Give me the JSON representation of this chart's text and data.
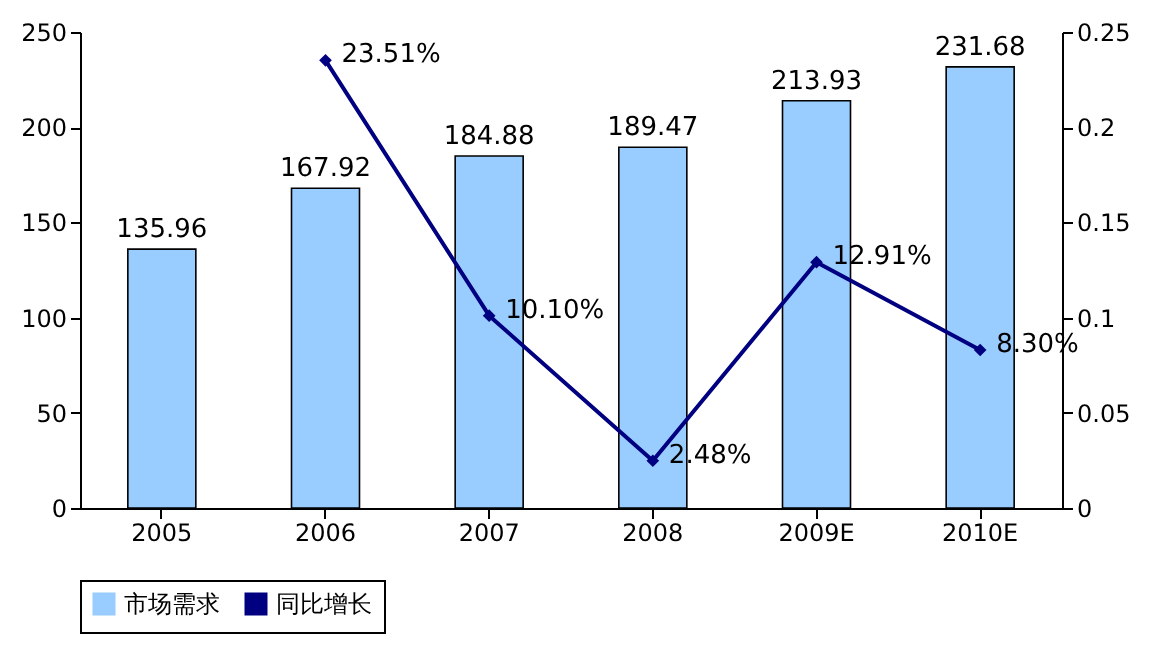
{
  "chart_data": {
    "type": "bar",
    "categories": [
      "2005",
      "2006",
      "2007",
      "2008",
      "2009E",
      "2010E"
    ],
    "series": [
      {
        "name": "市场需求",
        "color": "#99ccff",
        "values": [
          135.96,
          167.92,
          184.88,
          189.47,
          213.93,
          231.68
        ]
      },
      {
        "name": "同比增长",
        "type": "line",
        "axis": "y2",
        "color": "#000080",
        "marker": "diamond",
        "values": [
          null,
          0.2351,
          0.101,
          0.0248,
          0.1291,
          0.083
        ],
        "value_labels": [
          null,
          "23.51%",
          "10.10%",
          "2.48%",
          "12.91%",
          "8.30%"
        ]
      }
    ],
    "ylim": [
      0,
      250
    ],
    "yticks": [
      0,
      50,
      100,
      150,
      200,
      250
    ],
    "y2lim": [
      0,
      0.25
    ],
    "y2ticks": [
      0,
      0.05,
      0.1,
      0.15,
      0.2,
      0.25
    ],
    "data_labels": true,
    "grid": false,
    "legend": "bottom"
  }
}
